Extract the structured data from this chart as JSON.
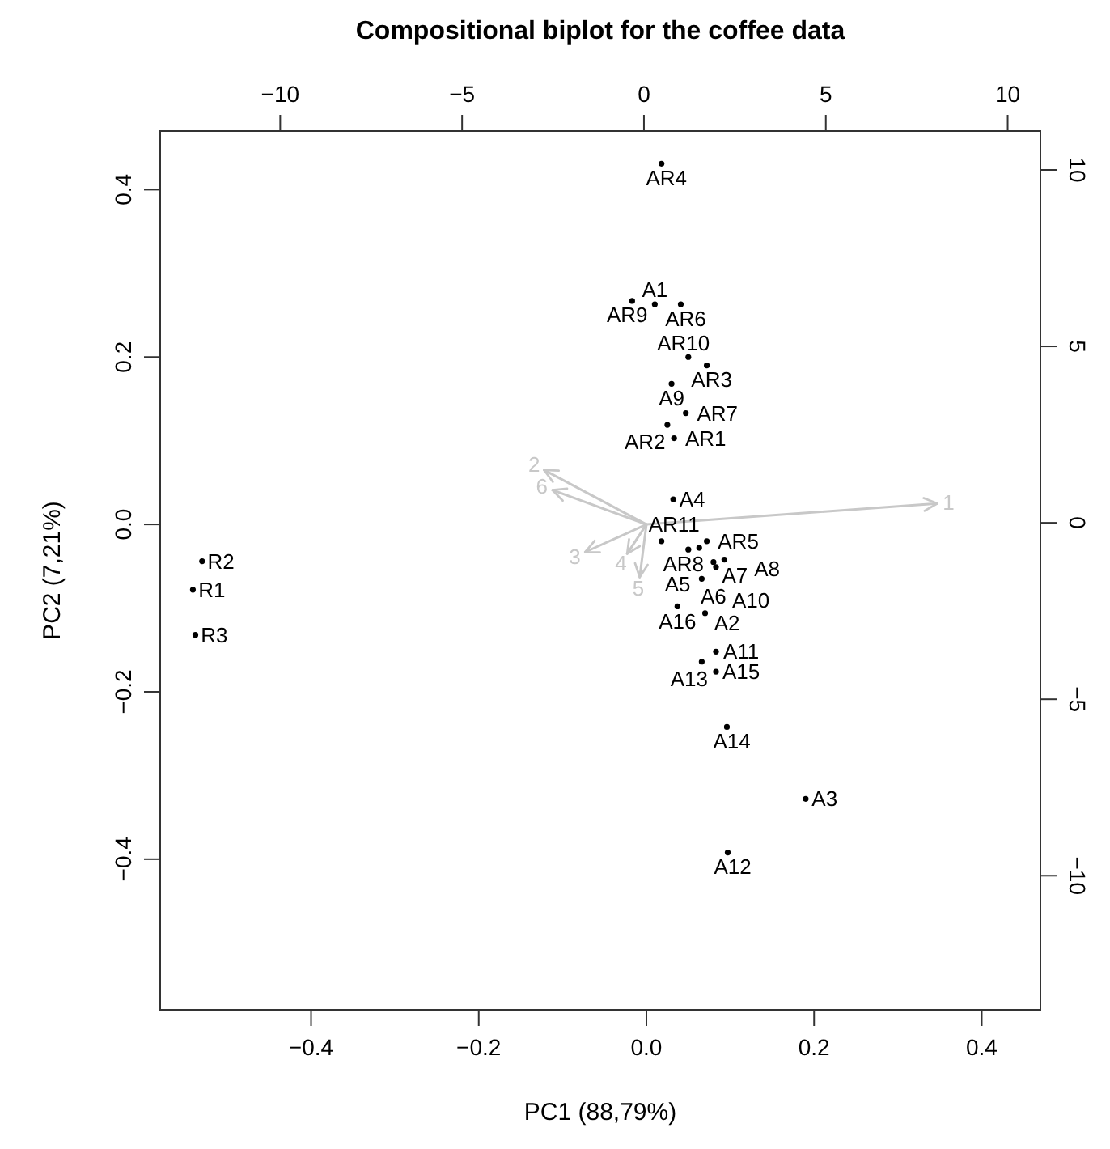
{
  "chart_data": {
    "type": "scatter",
    "title": "Compositional biplot for the coffee data",
    "xlabel": "PC1 (88,79%)",
    "ylabel": "PC2 (7,21%)",
    "xlim": [
      -0.58,
      0.47
    ],
    "ylim": [
      -0.58,
      0.47
    ],
    "xticks": [
      {
        "value": -0.4,
        "label": "−0.4"
      },
      {
        "value": -0.2,
        "label": "−0.2"
      },
      {
        "value": 0,
        "label": "0.0"
      },
      {
        "value": 0.2,
        "label": "0.2"
      },
      {
        "value": 0.4,
        "label": "0.4"
      }
    ],
    "yticks": [
      {
        "value": -0.4,
        "label": "−0.4"
      },
      {
        "value": -0.2,
        "label": "−0.2"
      },
      {
        "value": 0,
        "label": "0.0"
      },
      {
        "value": 0.2,
        "label": "0.2"
      },
      {
        "value": 0.4,
        "label": "0.4"
      }
    ],
    "x2lim": [
      -13.3,
      10.9
    ],
    "x2ticks": [
      {
        "value": -10,
        "label": "−10"
      },
      {
        "value": -5,
        "label": "−5"
      },
      0,
      5,
      10
    ],
    "y2lim": [
      -13.8,
      11.1
    ],
    "y2ticks": [
      {
        "value": -10,
        "label": "−10"
      },
      {
        "value": -5,
        "label": "−5"
      },
      0,
      5,
      10
    ],
    "grid": false,
    "series": [
      {
        "color": "#000000",
        "marker": "circle",
        "x": [
          0.018,
          -0.017,
          0.01,
          0.041,
          0.05,
          0.072,
          0.03,
          0.047,
          0.025,
          0.033,
          0.032,
          0.018,
          0.072,
          0.05,
          0.063,
          0.093,
          0.08,
          0.083,
          0.066,
          0.037,
          0.07,
          0.083,
          0.066,
          0.083,
          0.096,
          0.19,
          0.097,
          -0.53,
          -0.541,
          -0.538
        ],
        "values": [
          0.431,
          0.267,
          0.263,
          0.263,
          0.2,
          0.19,
          0.168,
          0.133,
          0.119,
          0.103,
          0.03,
          -0.02,
          -0.02,
          -0.03,
          -0.028,
          -0.042,
          -0.045,
          -0.051,
          -0.065,
          -0.098,
          -0.106,
          -0.152,
          -0.164,
          -0.176,
          -0.242,
          -0.328,
          -0.392,
          -0.044,
          -0.078,
          -0.132
        ],
        "value_labels": [
          "AR4",
          "AR9",
          "A1",
          "AR6",
          "AR10",
          "AR3",
          "A9",
          "AR7",
          "AR2",
          "AR1",
          "A4",
          "AR11",
          "AR5",
          "AR8",
          "A7",
          "A8",
          "A6",
          "A5",
          "A10",
          "A16",
          "A2",
          "A11",
          "A13",
          "A15",
          "A14",
          "A3",
          "A12",
          "R2",
          "R1",
          "R3"
        ]
      },
      {
        "type": "line",
        "name": "1",
        "color": "#c8c8c8",
        "x": [
          0,
          0.347
        ],
        "values": [
          0,
          0.025
        ]
      },
      {
        "type": "line",
        "name": "2",
        "color": "#c8c8c8",
        "x": [
          0,
          -0.122
        ],
        "values": [
          0,
          0.065
        ]
      },
      {
        "type": "line",
        "name": "3",
        "color": "#c8c8c8",
        "x": [
          0,
          -0.073
        ],
        "values": [
          0,
          -0.033
        ]
      },
      {
        "type": "line",
        "name": "4",
        "color": "#c8c8c8",
        "x": [
          0,
          -0.023
        ],
        "values": [
          0,
          -0.035
        ]
      },
      {
        "type": "line",
        "name": "5",
        "color": "#c8c8c8",
        "x": [
          0,
          -0.008
        ],
        "values": [
          0,
          -0.063
        ]
      },
      {
        "type": "line",
        "name": "6",
        "color": "#c8c8c8",
        "x": [
          0,
          -0.112
        ],
        "values": [
          0,
          0.041
        ]
      }
    ]
  }
}
